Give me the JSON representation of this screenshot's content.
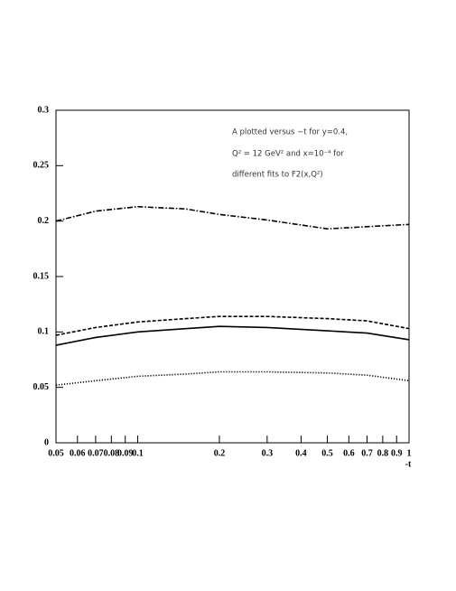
{
  "chart_data": {
    "type": "line",
    "annotations": [
      "A plotted versus −t for y=0.4,",
      "Q² = 12 GeV² and x=10⁻⁴ for",
      "different fits to F2(x,Q²)"
    ],
    "xlabel": "-t",
    "log_x": true,
    "x": [
      0.05,
      0.07,
      0.1,
      0.15,
      0.2,
      0.3,
      0.5,
      0.7,
      1
    ],
    "series": [
      {
        "color": "#000000",
        "dash": "dashdot",
        "values": [
          0.2,
          0.209,
          0.213,
          0.211,
          0.206,
          0.201,
          0.193,
          0.195,
          0.197
        ]
      },
      {
        "color": "#000000",
        "dash": "dashed",
        "values": [
          0.097,
          0.104,
          0.109,
          0.112,
          0.114,
          0.114,
          0.112,
          0.11,
          0.103
        ]
      },
      {
        "color": "#000000",
        "dash": "solid",
        "values": [
          0.088,
          0.095,
          0.1,
          0.103,
          0.105,
          0.104,
          0.101,
          0.099,
          0.093
        ]
      },
      {
        "color": "#000000",
        "dash": "dotted",
        "values": [
          0.052,
          0.056,
          0.06,
          0.062,
          0.064,
          0.064,
          0.063,
          0.061,
          0.056
        ]
      }
    ],
    "xlim": [
      0.05,
      1
    ],
    "xticks": [
      0.05,
      0.06,
      0.07,
      0.08,
      0.09,
      0.1,
      0.2,
      0.3,
      0.4,
      0.5,
      0.6,
      0.7,
      0.8,
      0.9,
      1
    ],
    "ylim": [
      0,
      0.3
    ],
    "yticks": [
      0,
      0.05,
      0.1,
      0.15,
      0.2,
      0.25,
      0.3
    ]
  }
}
